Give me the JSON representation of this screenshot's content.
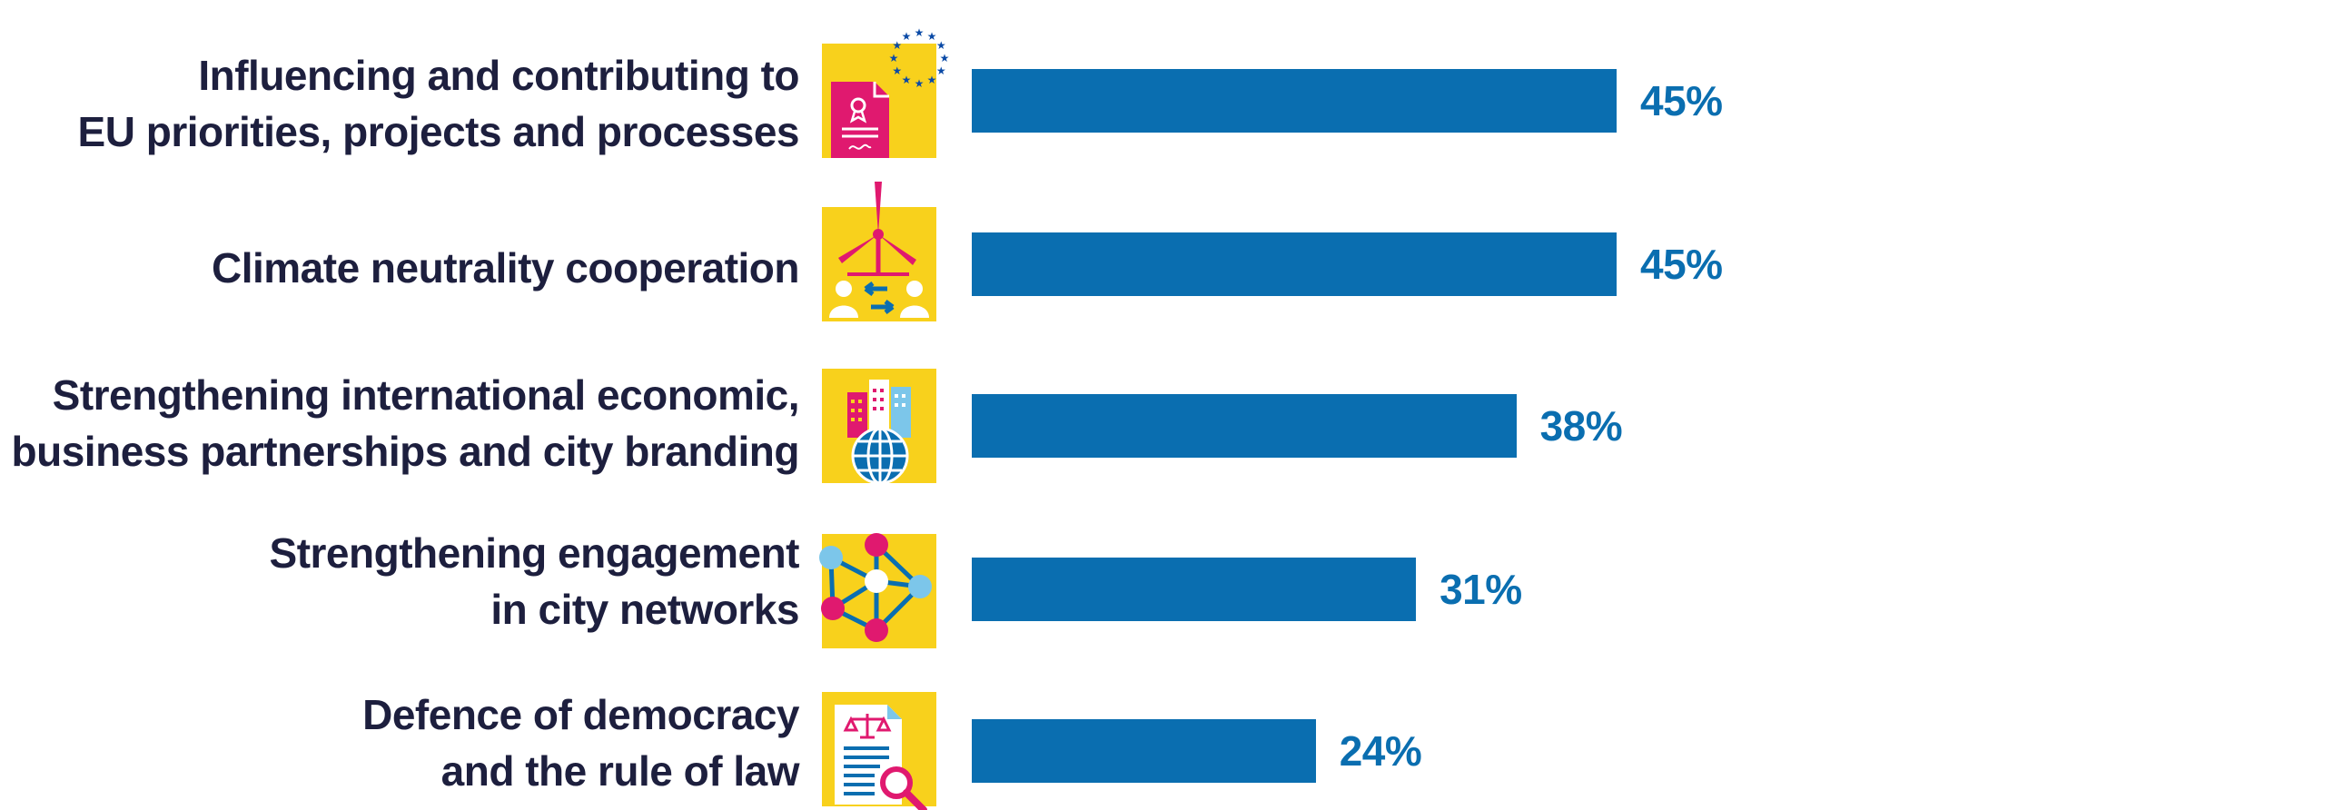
{
  "chart_data": {
    "type": "bar",
    "orientation": "horizontal",
    "categories": [
      [
        "Influencing and contributing to",
        "EU priorities, projects and processes"
      ],
      [
        "Climate neutrality cooperation"
      ],
      [
        "Strengthening international economic,",
        "business partnerships and city branding"
      ],
      [
        "Strengthening engagement",
        "in city networks"
      ],
      [
        "Defence of democracy",
        "and the rule of law"
      ]
    ],
    "values": [
      45,
      45,
      38,
      31,
      24
    ],
    "value_labels": [
      "45%",
      "45%",
      "38%",
      "31%",
      "24%"
    ],
    "unit": "%",
    "xlim": [
      0,
      100
    ],
    "grid": false,
    "icons": [
      "eu-document-icon",
      "wind-turbine-cooperation-icon",
      "city-globe-icon",
      "network-icon",
      "law-document-search-icon"
    ]
  },
  "colors": {
    "bar": "#0a6eb0",
    "icon_background": "#f8d11c",
    "label_text": "#1d1f3e",
    "value_text": "#0a6eb0",
    "accent_pink": "#e0196f",
    "accent_light_blue": "#7cc6ea",
    "eu_blue": "#0a4aa6"
  }
}
